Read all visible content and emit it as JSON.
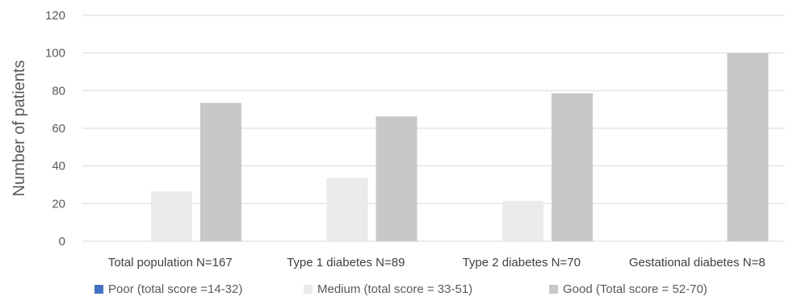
{
  "chart_data": {
    "type": "bar",
    "title": "",
    "xlabel": "",
    "ylabel": "Number of patients",
    "ylim": [
      0,
      120
    ],
    "yticks": [
      0,
      20,
      40,
      60,
      80,
      100,
      120
    ],
    "grid": true,
    "legend_position": "bottom",
    "categories": [
      "Total population N=167",
      "Type 1 diabetes N=89",
      "Type 2 diabetes N=70",
      "Gestational diabetes N=8"
    ],
    "series": [
      {
        "name": "Poor (total score =14-32)",
        "color": "#4472c4",
        "values": [
          0,
          0,
          0,
          0
        ]
      },
      {
        "name": "Medium (total score = 33-51)",
        "color": "#ebebeb",
        "values": [
          26.5,
          33.7,
          21.4,
          0
        ]
      },
      {
        "name": "Good (Total score = 52-70)",
        "color": "#c8c8c8",
        "values": [
          73.5,
          66.3,
          78.6,
          100
        ]
      }
    ]
  }
}
